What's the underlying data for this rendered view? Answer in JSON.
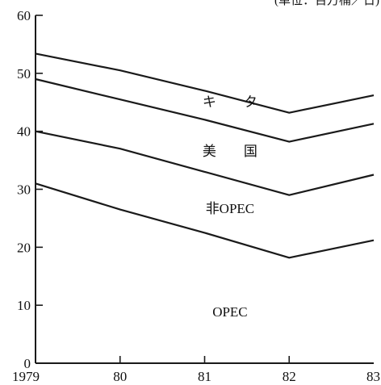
{
  "chart_data": {
    "type": "area",
    "unit_label": "(单位：百万桶／日)",
    "x": [
      1979,
      1980,
      1981,
      1982,
      1983
    ],
    "x_tick_labels": [
      "1979",
      "80",
      "81",
      "82",
      "83"
    ],
    "ylim": [
      0,
      60
    ],
    "y_ticks": [
      0,
      10,
      20,
      30,
      40,
      50,
      60
    ],
    "y_tick_labels": [
      "0",
      "10",
      "20",
      "30",
      "40",
      "50",
      "60"
    ],
    "stacked": true,
    "grid": false,
    "boundaries": [
      {
        "id": "opec",
        "label": "OPEC",
        "top": [
          31,
          26.5,
          22.5,
          18.2,
          21.2
        ]
      },
      {
        "id": "non-opec",
        "label": "非OPEC",
        "top": [
          40,
          37,
          33,
          29,
          32.5
        ]
      },
      {
        "id": "usa",
        "label": "美　　国",
        "top": [
          49,
          45.5,
          42,
          38.2,
          41.3
        ]
      },
      {
        "id": "other",
        "label": "キ　　タ",
        "top": [
          53.4,
          50.5,
          47,
          43.2,
          46.2
        ]
      }
    ],
    "region_labels": [
      {
        "id": "other",
        "text": "キ　　タ",
        "x": 1981.3,
        "y": 44.3
      },
      {
        "id": "usa",
        "text": "美　　国",
        "x": 1981.3,
        "y": 35.8
      },
      {
        "id": "non-opec",
        "text": "非OPEC",
        "x": 1981.3,
        "y": 25.9
      },
      {
        "id": "opec",
        "text": "OPEC",
        "x": 1981.3,
        "y": 8.1
      }
    ]
  }
}
